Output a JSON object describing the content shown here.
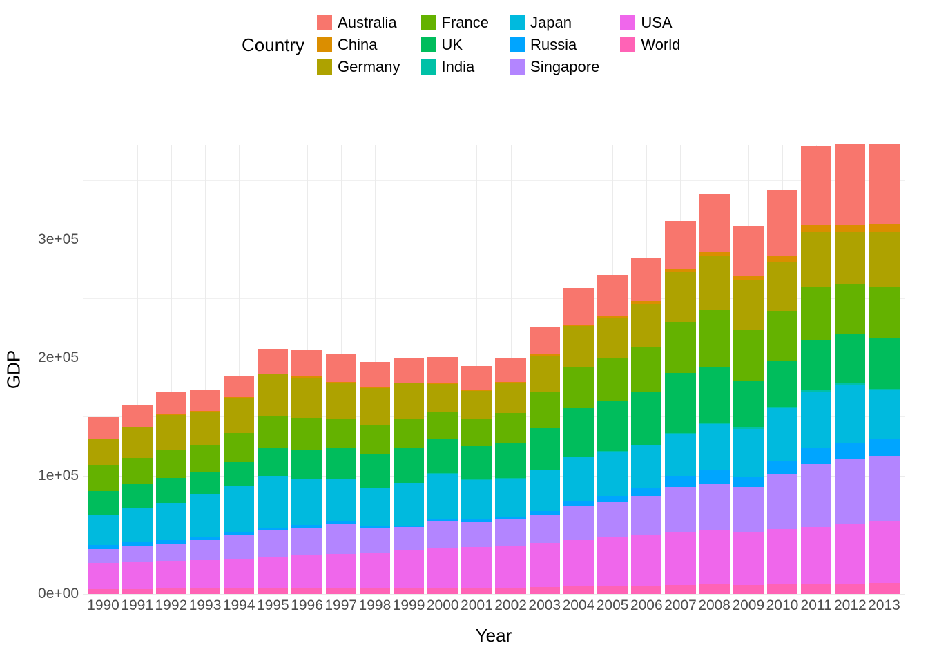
{
  "chart": {
    "type": "stacked-bar",
    "background_color": "#ffffff",
    "grid_color": "#ebebeb",
    "axis_title_fontsize": 26,
    "tick_fontsize": 21,
    "legend_fontsize": 22,
    "legend_title": "Country",
    "xlab": "Year",
    "ylab": "GDP",
    "ylim": [
      0,
      380000
    ],
    "yticks": [
      0,
      100000,
      200000,
      300000
    ],
    "ytick_labels": [
      "0e+00",
      "1e+05",
      "2e+05",
      "3e+05"
    ],
    "years": [
      "1990",
      "1991",
      "1992",
      "1993",
      "1994",
      "1995",
      "1996",
      "1997",
      "1998",
      "1999",
      "2000",
      "2001",
      "2002",
      "2003",
      "2004",
      "2005",
      "2006",
      "2007",
      "2008",
      "2009",
      "2010",
      "2011",
      "2012",
      "2013"
    ],
    "series": [
      {
        "name": "Australia",
        "color": "#f8766d"
      },
      {
        "name": "China",
        "color": "#db8e00"
      },
      {
        "name": "Germany",
        "color": "#aea200"
      },
      {
        "name": "France",
        "color": "#64b200"
      },
      {
        "name": "UK",
        "color": "#00bd5c"
      },
      {
        "name": "India",
        "color": "#00c1a7"
      },
      {
        "name": "Japan",
        "color": "#00bade"
      },
      {
        "name": "Russia",
        "color": "#00a5ff"
      },
      {
        "name": "Singapore",
        "color": "#b385ff"
      },
      {
        "name": "USA",
        "color": "#ef67eb"
      },
      {
        "name": "World",
        "color": "#ff63b6"
      }
    ],
    "legend_columns": [
      [
        "Australia",
        "China",
        "Germany"
      ],
      [
        "France",
        "UK",
        "India"
      ],
      [
        "Japan",
        "Russia",
        "Singapore"
      ],
      [
        "USA",
        "World"
      ]
    ],
    "data": {
      "World": [
        4200,
        4300,
        4400,
        4500,
        4600,
        4700,
        4800,
        4900,
        5000,
        5100,
        5200,
        5300,
        5400,
        6000,
        6500,
        7000,
        7300,
        7800,
        8200,
        7900,
        8300,
        8800,
        9000,
        9200
      ],
      "USA": [
        22000,
        22500,
        23000,
        24000,
        25500,
        27000,
        28000,
        29000,
        30000,
        31500,
        33500,
        34500,
        35500,
        37000,
        39000,
        41000,
        43000,
        45000,
        46000,
        44500,
        46500,
        48000,
        50000,
        52000
      ],
      "Singapore": [
        12000,
        13500,
        15000,
        17000,
        19500,
        22000,
        23000,
        25000,
        20500,
        20000,
        23000,
        21000,
        22000,
        24000,
        28500,
        30000,
        33000,
        38000,
        39000,
        38000,
        47000,
        53000,
        55000,
        56000
      ],
      "Russia": [
        3500,
        3400,
        3000,
        2900,
        2500,
        2700,
        2800,
        2900,
        1800,
        1300,
        1800,
        2100,
        2400,
        3000,
        4100,
        5300,
        6900,
        9100,
        11600,
        8600,
        10700,
        13300,
        14100,
        14500
      ],
      "Japan": [
        25400,
        28900,
        31500,
        35800,
        39300,
        43400,
        38400,
        35000,
        31900,
        36000,
        38500,
        33800,
        32300,
        34800,
        37700,
        37200,
        35400,
        35300,
        39300,
        40900,
        44500,
        48200,
        48600,
        40500
      ],
      "India": [
        380,
        320,
        330,
        320,
        370,
        390,
        420,
        430,
        430,
        460,
        460,
        470,
        490,
        570,
        660,
        760,
        860,
        1100,
        1050,
        1150,
        1420,
        1540,
        1500,
        1550
      ],
      "UK": [
        19500,
        20300,
        20900,
        18800,
        20200,
        23000,
        24200,
        26600,
        28300,
        28800,
        28300,
        27900,
        30200,
        34800,
        41000,
        42000,
        44700,
        50700,
        47500,
        38900,
        38800,
        41600,
        41500,
        42400
      ],
      "France": [
        22000,
        22000,
        24200,
        22800,
        24000,
        27500,
        27500,
        24800,
        25600,
        25300,
        23200,
        23200,
        25100,
        30800,
        35000,
        36200,
        38100,
        43500,
        47600,
        43600,
        42200,
        45400,
        42600,
        44100
      ],
      "Germany": [
        22000,
        25800,
        29300,
        28300,
        30200,
        35500,
        34100,
        30200,
        30600,
        29800,
        23700,
        23700,
        25200,
        30400,
        34200,
        34700,
        36400,
        41800,
        45600,
        41700,
        41800,
        46800,
        44000,
        46300
      ],
      "China": [
        340,
        360,
        420,
        520,
        470,
        600,
        700,
        780,
        820,
        860,
        940,
        1040,
        1140,
        1280,
        1500,
        1750,
        2100,
        2700,
        3450,
        3750,
        4450,
        5500,
        6100,
        6800
      ],
      "Australia": [
        18500,
        18900,
        18600,
        17700,
        18200,
        20500,
        22600,
        23600,
        21500,
        20700,
        21900,
        19700,
        20300,
        23600,
        30600,
        34100,
        36200,
        40800,
        49500,
        42600,
        56600,
        67500,
        68100,
        67700
      ]
    },
    "bar_width": 0.9
  }
}
